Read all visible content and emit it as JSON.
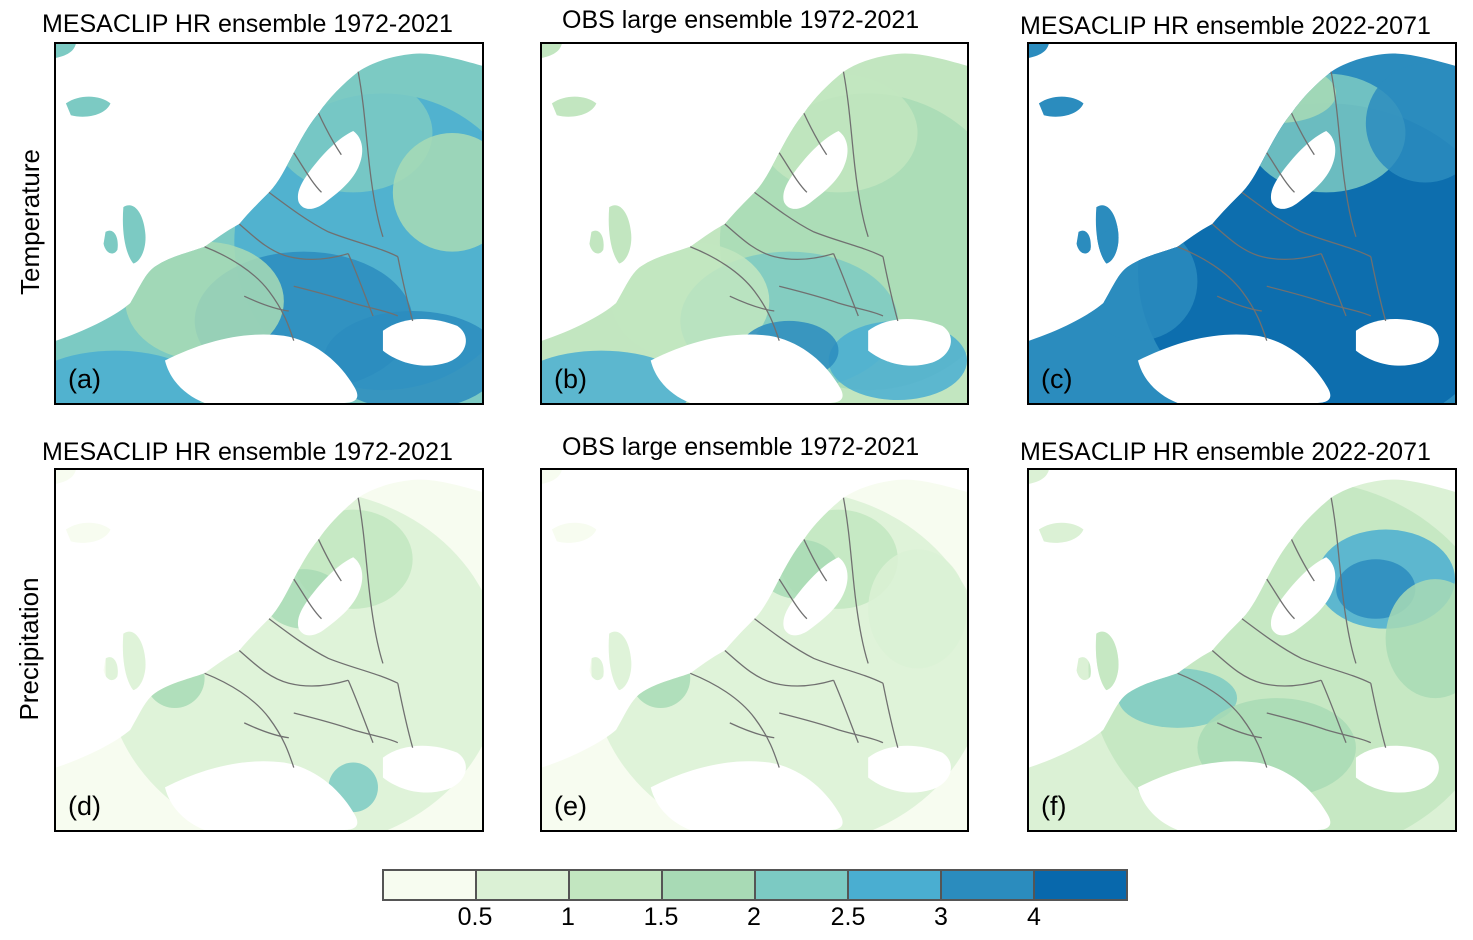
{
  "rows": [
    {
      "label": "Temperature"
    },
    {
      "label": "Precipitation"
    }
  ],
  "panels": [
    {
      "title": "MESACLIP HR ensemble 1972-2021",
      "letter": "(a)",
      "variable": "Temperature",
      "dominant_colors": [
        "#4aaed1",
        "#2b8cbe",
        "#7ccac3"
      ]
    },
    {
      "title": "OBS large ensemble 1972-2021",
      "letter": "(b)",
      "variable": "Temperature",
      "dominant_colors": [
        "#a8dab5",
        "#7ccac3",
        "#4aaed1"
      ]
    },
    {
      "title": "MESACLIP HR ensemble 2022-2071",
      "letter": "(c)",
      "variable": "Temperature",
      "dominant_colors": [
        "#0868ac",
        "#2b8cbe",
        "#4aaed1"
      ]
    },
    {
      "title": "MESACLIP HR ensemble 1972-2021",
      "letter": "(d)",
      "variable": "Precipitation",
      "dominant_colors": [
        "#f3faed",
        "#dbf1d5",
        "#c2e6c0"
      ]
    },
    {
      "title": "OBS large ensemble 1972-2021",
      "letter": "(e)",
      "variable": "Precipitation",
      "dominant_colors": [
        "#f3faed",
        "#dbf1d5",
        "#c2e6c0"
      ]
    },
    {
      "title": "MESACLIP HR ensemble 2022-2071",
      "letter": "(f)",
      "variable": "Precipitation",
      "dominant_colors": [
        "#dbf1d5",
        "#a8dab5",
        "#4aaed1"
      ]
    }
  ],
  "colorbar": {
    "colors": [
      "#f7fcf0",
      "#dbf1d5",
      "#c2e6c0",
      "#a8dab5",
      "#7ccac3",
      "#4aaed1",
      "#2b8cbe",
      "#0868ac"
    ],
    "ticks": [
      "0.5",
      "1",
      "1.5",
      "2",
      "2.5",
      "3",
      "4"
    ]
  }
}
